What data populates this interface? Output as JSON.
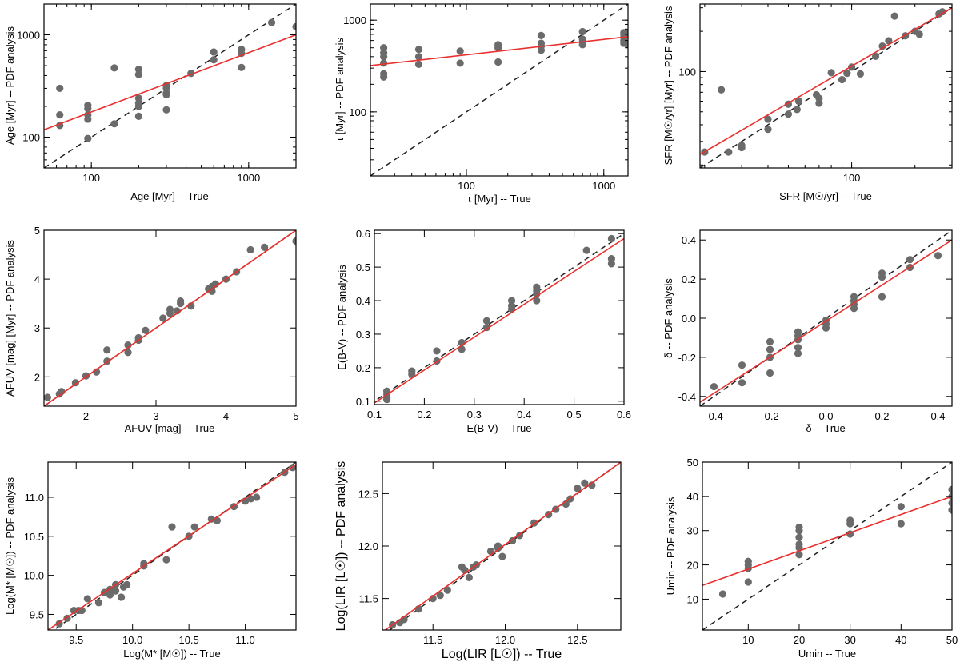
{
  "colors": {
    "points": "#6b6b6b",
    "fit": "#e8312f",
    "one_to_one": "#222222"
  },
  "chart_data": [
    {
      "id": "age",
      "type": "scatter",
      "title": "",
      "xlabel": "Age [Myr] -- True",
      "ylabel": "Age [Myr] -- PDF analysis",
      "xscale": "log",
      "yscale": "log",
      "xlim": [
        50,
        2000
      ],
      "ylim": [
        50,
        2000
      ],
      "xticks": [
        100,
        1000
      ],
      "yticks": [
        100,
        1000
      ],
      "xtick_labels": [
        "100",
        "1000"
      ],
      "ytick_labels": [
        "100",
        "1000"
      ],
      "grid": false,
      "one_to_one": true,
      "fit": {
        "x": [
          50,
          2000
        ],
        "y": [
          118,
          1000
        ]
      },
      "points": [
        [
          63,
          300
        ],
        [
          63,
          165
        ],
        [
          63,
          130
        ],
        [
          95,
          205
        ],
        [
          95,
          190
        ],
        [
          95,
          165
        ],
        [
          95,
          150
        ],
        [
          95,
          97
        ],
        [
          140,
          135
        ],
        [
          140,
          475
        ],
        [
          200,
          460
        ],
        [
          200,
          410
        ],
        [
          200,
          240
        ],
        [
          200,
          215
        ],
        [
          200,
          200
        ],
        [
          200,
          160
        ],
        [
          300,
          320
        ],
        [
          300,
          300
        ],
        [
          300,
          270
        ],
        [
          300,
          260
        ],
        [
          300,
          185
        ],
        [
          430,
          420
        ],
        [
          600,
          680
        ],
        [
          600,
          570
        ],
        [
          900,
          720
        ],
        [
          900,
          660
        ],
        [
          900,
          480
        ],
        [
          1400,
          1320
        ],
        [
          2000,
          1200
        ]
      ]
    },
    {
      "id": "tau",
      "type": "scatter",
      "title": "",
      "xlabel": "τ [Myr] -- True",
      "ylabel": "τ [Myr] -- PDF analysis",
      "xscale": "log",
      "yscale": "log",
      "xlim": [
        20,
        1500
      ],
      "ylim": [
        20,
        1500
      ],
      "xticks": [
        100,
        1000
      ],
      "yticks": [
        100,
        1000
      ],
      "xtick_labels": [
        "100",
        "1000"
      ],
      "ytick_labels": [
        "100",
        "1000"
      ],
      "grid": false,
      "one_to_one": true,
      "fit": {
        "x": [
          20,
          1500
        ],
        "y": [
          320,
          660
        ]
      },
      "points": [
        [
          25,
          500
        ],
        [
          25,
          440
        ],
        [
          25,
          400
        ],
        [
          25,
          340
        ],
        [
          25,
          260
        ],
        [
          25,
          240
        ],
        [
          45,
          480
        ],
        [
          45,
          400
        ],
        [
          45,
          330
        ],
        [
          90,
          460
        ],
        [
          90,
          340
        ],
        [
          170,
          540
        ],
        [
          170,
          500
        ],
        [
          170,
          350
        ],
        [
          350,
          680
        ],
        [
          350,
          560
        ],
        [
          350,
          520
        ],
        [
          350,
          470
        ],
        [
          700,
          750
        ],
        [
          700,
          620
        ],
        [
          700,
          580
        ],
        [
          700,
          540
        ],
        [
          1400,
          730
        ],
        [
          1400,
          700
        ],
        [
          1400,
          650
        ],
        [
          1400,
          600
        ],
        [
          1400,
          560
        ],
        [
          1500,
          720
        ],
        [
          1500,
          540
        ]
      ]
    },
    {
      "id": "sfr",
      "type": "scatter",
      "title": "",
      "xlabel": "SFR [M☉/yr] -- True",
      "ylabel": "SFR [M☉/yr] [Myr] -- PDF analysis",
      "xscale": "log",
      "yscale": "log",
      "xlim": [
        19,
        300
      ],
      "ylim": [
        19,
        320
      ],
      "xticks": [
        100
      ],
      "yticks": [
        100
      ],
      "xtick_labels": [
        "100"
      ],
      "ytick_labels": [
        "100"
      ],
      "grid": false,
      "one_to_one": true,
      "fit": {
        "x": [
          19,
          300
        ],
        "y": [
          24,
          300
        ]
      },
      "points": [
        [
          20,
          25
        ],
        [
          24,
          73
        ],
        [
          26,
          25
        ],
        [
          30,
          27
        ],
        [
          30,
          28
        ],
        [
          40,
          44
        ],
        [
          40,
          37
        ],
        [
          50,
          57
        ],
        [
          50,
          48
        ],
        [
          56,
          60
        ],
        [
          55,
          52
        ],
        [
          68,
          67
        ],
        [
          70,
          63
        ],
        [
          70,
          58
        ],
        [
          80,
          98
        ],
        [
          90,
          87
        ],
        [
          95,
          97
        ],
        [
          100,
          108
        ],
        [
          110,
          96
        ],
        [
          130,
          130
        ],
        [
          140,
          155
        ],
        [
          150,
          170
        ],
        [
          160,
          260
        ],
        [
          180,
          185
        ],
        [
          200,
          200
        ],
        [
          210,
          190
        ],
        [
          260,
          270
        ],
        [
          270,
          280
        ]
      ]
    },
    {
      "id": "afuv",
      "type": "scatter",
      "title": "",
      "xlabel": "AFUV [mag] -- True",
      "ylabel": "AFUV [mag] [Myr] -- PDF analysis",
      "xscale": "linear",
      "yscale": "linear",
      "xlim": [
        1.4,
        5
      ],
      "ylim": [
        1.4,
        5
      ],
      "xticks": [
        2,
        3,
        4,
        5
      ],
      "yticks": [
        2,
        3,
        4,
        5
      ],
      "xtick_labels": [
        "2",
        "3",
        "4",
        "5"
      ],
      "ytick_labels": [
        "2",
        "3",
        "4",
        "5"
      ],
      "grid": false,
      "one_to_one": true,
      "fit": {
        "x": [
          1.4,
          5
        ],
        "y": [
          1.4,
          5
        ]
      },
      "points": [
        [
          1.45,
          1.58
        ],
        [
          1.62,
          1.65
        ],
        [
          1.65,
          1.7
        ],
        [
          1.85,
          1.88
        ],
        [
          2.0,
          2.02
        ],
        [
          2.15,
          2.1
        ],
        [
          2.3,
          2.32
        ],
        [
          2.3,
          2.55
        ],
        [
          2.6,
          2.5
        ],
        [
          2.6,
          2.65
        ],
        [
          2.75,
          2.8
        ],
        [
          2.75,
          2.75
        ],
        [
          2.85,
          2.95
        ],
        [
          3.1,
          3.2
        ],
        [
          3.2,
          3.38
        ],
        [
          3.2,
          3.3
        ],
        [
          3.3,
          3.35
        ],
        [
          3.35,
          3.5
        ],
        [
          3.35,
          3.55
        ],
        [
          3.5,
          3.45
        ],
        [
          3.75,
          3.8
        ],
        [
          3.8,
          3.75
        ],
        [
          3.8,
          3.85
        ],
        [
          3.85,
          3.9
        ],
        [
          4.0,
          4.0
        ],
        [
          4.15,
          4.15
        ],
        [
          4.35,
          4.6
        ],
        [
          4.55,
          4.65
        ],
        [
          5.0,
          4.78
        ]
      ]
    },
    {
      "id": "ebv",
      "type": "scatter",
      "title": "",
      "xlabel": "E(B-V) -- True",
      "ylabel": "E(B-V) -- PDF analysis",
      "xscale": "linear",
      "yscale": "linear",
      "xlim": [
        0.1,
        0.6
      ],
      "ylim": [
        0.09,
        0.61
      ],
      "xticks": [
        0.1,
        0.2,
        0.3,
        0.4,
        0.5,
        0.6
      ],
      "yticks": [
        0.1,
        0.2,
        0.3,
        0.4,
        0.5,
        0.6
      ],
      "xtick_labels": [
        "0.1",
        "0.2",
        "0.3",
        "0.4",
        "0.5",
        "0.6"
      ],
      "ytick_labels": [
        "0.1",
        "0.2",
        "0.3",
        "0.4",
        "0.5",
        "0.6"
      ],
      "grid": false,
      "one_to_one": true,
      "fit": {
        "x": [
          0.1,
          0.6
        ],
        "y": [
          0.095,
          0.585
        ]
      },
      "points": [
        [
          0.125,
          0.13
        ],
        [
          0.125,
          0.12
        ],
        [
          0.125,
          0.11
        ],
        [
          0.125,
          0.105
        ],
        [
          0.175,
          0.19
        ],
        [
          0.175,
          0.18
        ],
        [
          0.225,
          0.25
        ],
        [
          0.225,
          0.22
        ],
        [
          0.275,
          0.275
        ],
        [
          0.275,
          0.255
        ],
        [
          0.325,
          0.34
        ],
        [
          0.325,
          0.32
        ],
        [
          0.375,
          0.4
        ],
        [
          0.375,
          0.385
        ],
        [
          0.375,
          0.375
        ],
        [
          0.425,
          0.44
        ],
        [
          0.425,
          0.43
        ],
        [
          0.425,
          0.42
        ],
        [
          0.425,
          0.4
        ],
        [
          0.525,
          0.55
        ],
        [
          0.575,
          0.585
        ],
        [
          0.575,
          0.525
        ],
        [
          0.575,
          0.51
        ]
      ]
    },
    {
      "id": "delta",
      "type": "scatter",
      "title": "",
      "xlabel": "δ -- True",
      "ylabel": "δ -- PDF analysis",
      "xscale": "linear",
      "yscale": "linear",
      "xlim": [
        -0.45,
        0.45
      ],
      "ylim": [
        -0.45,
        0.45
      ],
      "xticks": [
        -0.4,
        -0.2,
        0.0,
        0.2,
        0.4
      ],
      "yticks": [
        -0.4,
        -0.2,
        0.0,
        0.2,
        0.4
      ],
      "xtick_labels": [
        "-0.4",
        "-0.2",
        "0.0",
        "0.2",
        "0.4"
      ],
      "ytick_labels": [
        "-0.4",
        "-0.2",
        "0.0",
        "0.2",
        "0.4"
      ],
      "grid": false,
      "one_to_one": true,
      "fit": {
        "x": [
          -0.45,
          0.45
        ],
        "y": [
          -0.43,
          0.4
        ]
      },
      "points": [
        [
          -0.4,
          -0.35
        ],
        [
          -0.3,
          -0.24
        ],
        [
          -0.3,
          -0.33
        ],
        [
          -0.2,
          -0.12
        ],
        [
          -0.2,
          -0.16
        ],
        [
          -0.2,
          -0.2
        ],
        [
          -0.2,
          -0.28
        ],
        [
          -0.1,
          -0.07
        ],
        [
          -0.1,
          -0.09
        ],
        [
          -0.1,
          -0.11
        ],
        [
          -0.1,
          -0.15
        ],
        [
          -0.1,
          -0.18
        ],
        [
          0.0,
          -0.01
        ],
        [
          0.0,
          -0.03
        ],
        [
          0.0,
          -0.05
        ],
        [
          0.1,
          0.11
        ],
        [
          0.1,
          0.09
        ],
        [
          0.1,
          0.07
        ],
        [
          0.1,
          0.05
        ],
        [
          0.2,
          0.23
        ],
        [
          0.2,
          0.21
        ],
        [
          0.2,
          0.11
        ],
        [
          0.3,
          0.3
        ],
        [
          0.3,
          0.26
        ],
        [
          0.4,
          0.32
        ]
      ]
    },
    {
      "id": "mstar",
      "type": "scatter",
      "title": "",
      "xlabel": "Log(M* [M☉]) -- True",
      "ylabel": "Log(M* [M☉]) -- PDF analysis",
      "xscale": "linear",
      "yscale": "linear",
      "xlim": [
        9.25,
        11.45
      ],
      "ylim": [
        9.3,
        11.45
      ],
      "xticks": [
        9.5,
        10.0,
        10.5,
        11.0
      ],
      "yticks": [
        9.5,
        10.0,
        10.5,
        11.0
      ],
      "xtick_labels": [
        "9.5",
        "10.0",
        "10.5",
        "11.0"
      ],
      "ytick_labels": [
        "9.5",
        "10.0",
        "10.5",
        "11.0"
      ],
      "grid": false,
      "one_to_one": true,
      "fit": {
        "x": [
          9.25,
          11.45
        ],
        "y": [
          9.3,
          11.42
        ]
      },
      "points": [
        [
          9.35,
          9.38
        ],
        [
          9.42,
          9.45
        ],
        [
          9.48,
          9.55
        ],
        [
          9.52,
          9.55
        ],
        [
          9.55,
          9.55
        ],
        [
          9.6,
          9.7
        ],
        [
          9.7,
          9.65
        ],
        [
          9.75,
          9.78
        ],
        [
          9.8,
          9.82
        ],
        [
          9.8,
          9.75
        ],
        [
          9.85,
          9.88
        ],
        [
          9.85,
          9.8
        ],
        [
          9.9,
          9.72
        ],
        [
          9.92,
          9.85
        ],
        [
          9.95,
          9.88
        ],
        [
          10.1,
          10.15
        ],
        [
          10.1,
          10.12
        ],
        [
          10.3,
          10.2
        ],
        [
          10.35,
          10.62
        ],
        [
          10.5,
          10.5
        ],
        [
          10.55,
          10.62
        ],
        [
          10.7,
          10.72
        ],
        [
          10.75,
          10.7
        ],
        [
          10.9,
          10.88
        ],
        [
          11.0,
          10.95
        ],
        [
          11.05,
          10.98
        ],
        [
          11.1,
          11.0
        ],
        [
          11.35,
          11.32
        ],
        [
          11.42,
          11.38
        ]
      ]
    },
    {
      "id": "lir",
      "type": "scatter",
      "title": "",
      "xlabel": "Log(LIR [L☉]) -- True",
      "ylabel": "Log(LIR [L☉]) -- PDF analysis",
      "xscale": "linear",
      "yscale": "linear",
      "xlim": [
        11.15,
        12.8
      ],
      "ylim": [
        11.2,
        12.8
      ],
      "xticks": [
        11.5,
        12.0,
        12.5
      ],
      "yticks": [
        11.5,
        12.0,
        12.5
      ],
      "xtick_labels": [
        "11.5",
        "12.0",
        "12.5"
      ],
      "ytick_labels": [
        "11.5",
        "12.0",
        "12.5"
      ],
      "grid": false,
      "one_to_one": true,
      "fit": {
        "x": [
          11.15,
          12.8
        ],
        "y": [
          11.18,
          12.8
        ]
      },
      "points": [
        [
          11.22,
          11.25
        ],
        [
          11.27,
          11.27
        ],
        [
          11.3,
          11.3
        ],
        [
          11.4,
          11.4
        ],
        [
          11.5,
          11.5
        ],
        [
          11.55,
          11.53
        ],
        [
          11.6,
          11.58
        ],
        [
          11.7,
          11.8
        ],
        [
          11.72,
          11.77
        ],
        [
          11.75,
          11.7
        ],
        [
          11.78,
          11.8
        ],
        [
          11.8,
          11.82
        ],
        [
          11.9,
          11.95
        ],
        [
          11.95,
          11.98
        ],
        [
          11.95,
          12.0
        ],
        [
          11.98,
          11.9
        ],
        [
          12.05,
          12.05
        ],
        [
          12.1,
          12.1
        ],
        [
          12.2,
          12.22
        ],
        [
          12.3,
          12.3
        ],
        [
          12.35,
          12.35
        ],
        [
          12.42,
          12.4
        ],
        [
          12.45,
          12.45
        ],
        [
          12.5,
          12.55
        ],
        [
          12.55,
          12.6
        ],
        [
          12.6,
          12.58
        ]
      ]
    },
    {
      "id": "umin",
      "type": "scatter",
      "title": "",
      "xlabel": "Umin -- True",
      "ylabel": "Umin -- PDF analysis",
      "xscale": "linear",
      "yscale": "linear",
      "xlim": [
        1,
        50
      ],
      "ylim": [
        1,
        50
      ],
      "xticks": [
        10,
        20,
        30,
        40,
        50
      ],
      "yticks": [
        10,
        20,
        30,
        40,
        50
      ],
      "xtick_labels": [
        "10",
        "20",
        "30",
        "40",
        "50"
      ],
      "ytick_labels": [
        "10",
        "20",
        "30",
        "40",
        "50"
      ],
      "grid": false,
      "one_to_one": true,
      "fit": {
        "x": [
          1,
          50
        ],
        "y": [
          14,
          40
        ]
      },
      "points": [
        [
          5,
          11.5
        ],
        [
          10,
          21
        ],
        [
          10,
          20
        ],
        [
          10,
          19
        ],
        [
          10,
          15
        ],
        [
          20,
          31
        ],
        [
          20,
          30
        ],
        [
          20,
          28
        ],
        [
          20,
          26
        ],
        [
          20,
          25
        ],
        [
          20,
          23
        ],
        [
          30,
          33
        ],
        [
          30,
          32
        ],
        [
          30,
          29
        ],
        [
          40,
          37
        ],
        [
          40,
          32
        ],
        [
          50,
          42
        ],
        [
          50,
          40
        ],
        [
          50,
          38
        ],
        [
          50,
          36
        ]
      ]
    }
  ]
}
